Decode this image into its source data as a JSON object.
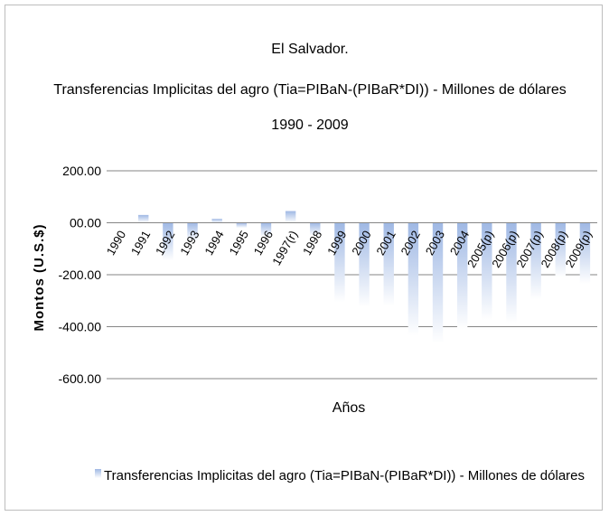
{
  "chart_data": {
    "type": "bar",
    "title_lines": [
      "El Salvador.",
      "Transferencias Implicitas del agro (Tia=PIBaN-(PIBaR*DI)) - Millones de dólares",
      "1990 - 2009"
    ],
    "xlabel": "Años",
    "ylabel": "Montos (U.S.$)",
    "ylim": [
      -600,
      200
    ],
    "yticks": [
      200,
      0,
      -200,
      -400,
      -600
    ],
    "ytick_labels": [
      "200.00",
      "00.00",
      "-200.00",
      "-400.00",
      "-600.00"
    ],
    "categories": [
      "1990",
      "1991",
      "1992",
      "1993",
      "1994",
      "1995",
      "1996",
      "1997(r)",
      "1998",
      "1999",
      "2000",
      "2001",
      "2002",
      "2003",
      "2004",
      "2005(p)",
      "2006(p)",
      "2007(p)",
      "2008(p)",
      "2009(p)"
    ],
    "series": [
      {
        "name": "Transferencias Implicitas del agro (Tia=PIBaN-(PIBaR*DI)) - Millones de dólares",
        "values": [
          0,
          30,
          -145,
          -70,
          15,
          -20,
          -55,
          45,
          -50,
          -305,
          -325,
          -320,
          -435,
          -465,
          -410,
          -375,
          -385,
          -295,
          -210,
          -235
        ],
        "color": "#9fb8e4"
      }
    ],
    "grid": true,
    "legend_position": "bottom"
  }
}
